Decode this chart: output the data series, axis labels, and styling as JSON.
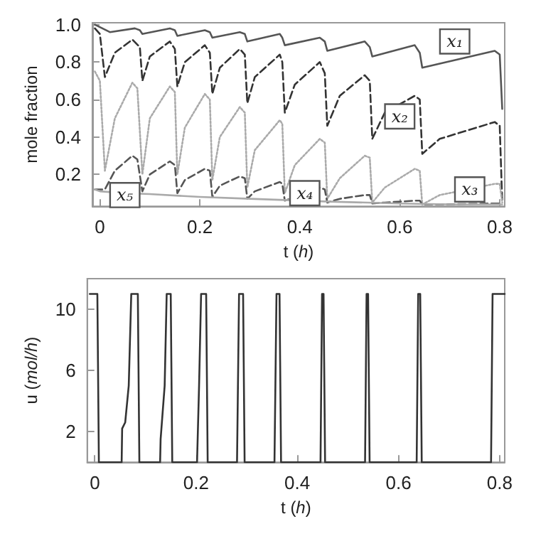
{
  "chart_data": [
    {
      "type": "line",
      "xlabel": "t (h)",
      "ylabel": "mole fraction",
      "xlim": [
        -0.015,
        0.81
      ],
      "ylim": [
        0.03,
        1.01
      ],
      "xticks": [
        0,
        0.2,
        0.4,
        0.6,
        0.8
      ],
      "yticks": [
        0.2,
        0.4,
        0.6,
        0.8,
        {
          "value": 1,
          "label": "1.0"
        }
      ],
      "marker": "none",
      "annotations": [
        {
          "text": "x₁",
          "x": 0.71,
          "y": 0.91
        },
        {
          "text": "x₂",
          "x": 0.6,
          "y": 0.51
        },
        {
          "text": "x₃",
          "x": 0.74,
          "y": 0.12
        },
        {
          "text": "x₄",
          "x": 0.41,
          "y": 0.1
        },
        {
          "text": "x₅",
          "x": 0.05,
          "y": 0.09
        }
      ],
      "series": [
        {
          "color": "#555555",
          "line_style": "solid",
          "x": [
            -0.01,
            0.02,
            0.07,
            0.08,
            0.085,
            0.14,
            0.15,
            0.155,
            0.21,
            0.22,
            0.225,
            0.28,
            0.29,
            0.295,
            0.36,
            0.365,
            0.37,
            0.44,
            0.45,
            0.455,
            0.53,
            0.54,
            0.545,
            0.63,
            0.64,
            0.645,
            0.79,
            0.8,
            0.805
          ],
          "values": [
            1.0,
            0.96,
            0.98,
            0.97,
            0.95,
            0.98,
            0.97,
            0.94,
            0.97,
            0.96,
            0.93,
            0.96,
            0.95,
            0.91,
            0.95,
            0.93,
            0.89,
            0.93,
            0.91,
            0.86,
            0.91,
            0.88,
            0.83,
            0.89,
            0.85,
            0.77,
            0.86,
            0.84,
            0.55
          ]
        },
        {
          "color": "#333333",
          "line_style": "dashed",
          "x": [
            -0.01,
            0.0,
            0.01,
            0.03,
            0.065,
            0.08,
            0.085,
            0.1,
            0.14,
            0.15,
            0.155,
            0.17,
            0.21,
            0.22,
            0.225,
            0.24,
            0.28,
            0.29,
            0.295,
            0.31,
            0.36,
            0.365,
            0.37,
            0.39,
            0.44,
            0.45,
            0.455,
            0.48,
            0.53,
            0.54,
            0.545,
            0.57,
            0.63,
            0.64,
            0.645,
            0.68,
            0.79,
            0.8,
            0.805
          ],
          "values": [
            0.98,
            0.95,
            0.72,
            0.85,
            0.92,
            0.88,
            0.7,
            0.83,
            0.91,
            0.87,
            0.67,
            0.8,
            0.89,
            0.85,
            0.63,
            0.77,
            0.87,
            0.84,
            0.58,
            0.72,
            0.84,
            0.8,
            0.53,
            0.68,
            0.8,
            0.74,
            0.46,
            0.62,
            0.73,
            0.7,
            0.39,
            0.53,
            0.62,
            0.6,
            0.31,
            0.39,
            0.48,
            0.46,
            0.05
          ]
        },
        {
          "color": "#aaaaaa",
          "line_style": "dotted",
          "x": [
            -0.01,
            0.0,
            0.01,
            0.03,
            0.065,
            0.075,
            0.085,
            0.1,
            0.14,
            0.15,
            0.155,
            0.17,
            0.21,
            0.22,
            0.225,
            0.24,
            0.28,
            0.29,
            0.295,
            0.31,
            0.36,
            0.365,
            0.37,
            0.39,
            0.44,
            0.45,
            0.455,
            0.48,
            0.53,
            0.54,
            0.545,
            0.57,
            0.63,
            0.64,
            0.645,
            0.68,
            0.79,
            0.8,
            0.805
          ],
          "values": [
            0.75,
            0.7,
            0.22,
            0.5,
            0.69,
            0.66,
            0.2,
            0.5,
            0.67,
            0.64,
            0.2,
            0.45,
            0.63,
            0.6,
            0.17,
            0.4,
            0.56,
            0.53,
            0.13,
            0.33,
            0.49,
            0.47,
            0.1,
            0.25,
            0.39,
            0.37,
            0.07,
            0.18,
            0.3,
            0.29,
            0.05,
            0.13,
            0.23,
            0.22,
            0.04,
            0.09,
            0.15,
            0.15,
            0.05
          ]
        },
        {
          "color": "#555555",
          "line_style": "dashed",
          "x": [
            -0.01,
            0.0,
            0.01,
            0.03,
            0.065,
            0.075,
            0.085,
            0.1,
            0.14,
            0.15,
            0.155,
            0.17,
            0.21,
            0.22,
            0.225,
            0.24,
            0.28,
            0.29,
            0.295,
            0.31,
            0.36,
            0.365,
            0.37,
            0.44,
            0.45,
            0.455,
            0.48,
            0.53,
            0.54,
            0.545,
            0.57,
            0.63,
            0.64,
            0.645,
            0.68,
            0.79,
            0.8,
            0.805
          ],
          "values": [
            0.12,
            0.12,
            0.12,
            0.22,
            0.3,
            0.28,
            0.11,
            0.2,
            0.27,
            0.25,
            0.1,
            0.17,
            0.23,
            0.22,
            0.08,
            0.14,
            0.19,
            0.18,
            0.07,
            0.11,
            0.16,
            0.15,
            0.06,
            0.13,
            0.12,
            0.05,
            0.07,
            0.09,
            0.09,
            0.045,
            0.05,
            0.06,
            0.06,
            0.04,
            0.04,
            0.045,
            0.045,
            0.04
          ]
        },
        {
          "color": "#aaaaaa",
          "line_style": "solid",
          "x": [
            -0.01,
            0.0,
            0.05,
            0.1,
            0.2,
            0.3,
            0.46,
            0.6,
            0.7,
            0.805
          ],
          "values": [
            0.12,
            0.11,
            0.1,
            0.095,
            0.08,
            0.07,
            0.055,
            0.045,
            0.04,
            0.04
          ]
        }
      ]
    },
    {
      "type": "line",
      "xlabel": "t (h)",
      "ylabel": "u (mol/h)",
      "xlim": [
        -0.015,
        0.81
      ],
      "ylim": [
        0,
        12
      ],
      "xticks": [
        0,
        0.2,
        0.4,
        0.6,
        0.8
      ],
      "yticks": [
        2,
        6,
        10
      ],
      "marker": "none",
      "series": [
        {
          "color": "#333333",
          "line_style": "solid",
          "x": [
            -0.01,
            0.005,
            0.008,
            0.053,
            0.054,
            0.06,
            0.067,
            0.072,
            0.074,
            0.085,
            0.088,
            0.129,
            0.13,
            0.138,
            0.142,
            0.15,
            0.153,
            0.202,
            0.206,
            0.21,
            0.22,
            0.223,
            0.281,
            0.285,
            0.293,
            0.296,
            0.355,
            0.359,
            0.365,
            0.368,
            0.446,
            0.449,
            0.452,
            0.455,
            0.534,
            0.537,
            0.54,
            0.543,
            0.636,
            0.639,
            0.643,
            0.646,
            0.783,
            0.786,
            0.81
          ],
          "values": [
            11,
            11,
            0,
            0,
            2.2,
            2.6,
            5,
            11,
            11,
            11,
            0,
            0,
            1.5,
            5,
            11,
            11,
            0,
            0,
            5,
            11,
            11,
            0,
            0,
            11,
            11,
            0,
            0,
            11,
            11,
            0,
            0,
            11,
            11,
            0,
            0,
            11,
            11,
            0,
            0,
            11,
            11,
            0,
            0,
            11,
            11
          ]
        }
      ]
    }
  ]
}
